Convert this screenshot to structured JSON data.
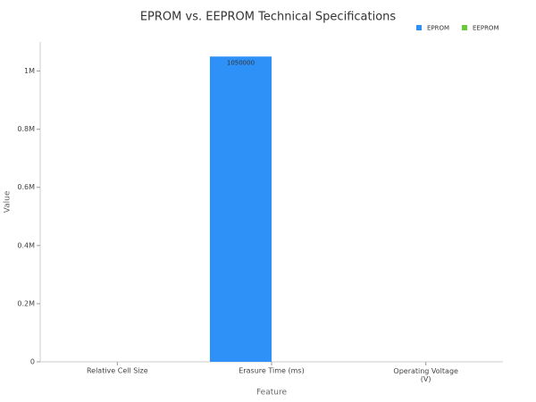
{
  "chart_data": {
    "type": "bar",
    "title": "EPROM vs. EEPROM Technical Specifications",
    "x_label": "Feature",
    "y_label": "Value",
    "categories": [
      "Relative Cell Size",
      "Erasure Time (ms)",
      "Operating Voltage\n(V)"
    ],
    "series": [
      {
        "name": "EPROM",
        "color": "#2e91f7",
        "values": [
          1,
          1050000,
          12.5
        ]
      },
      {
        "name": "EEPROM",
        "color": "#66cc33",
        "values": [
          2,
          5,
          5
        ]
      }
    ],
    "ylim": [
      0,
      1100000
    ],
    "yticks": [
      0,
      {
        "value": 200000,
        "label": "0.2M"
      },
      {
        "value": 400000,
        "label": "0.4M"
      },
      {
        "value": 600000,
        "label": "0.6M"
      },
      {
        "value": 800000,
        "label": "0.8M"
      },
      {
        "value": 1000000,
        "label": "1M"
      }
    ],
    "data_labels": true,
    "legend": "top-right"
  }
}
